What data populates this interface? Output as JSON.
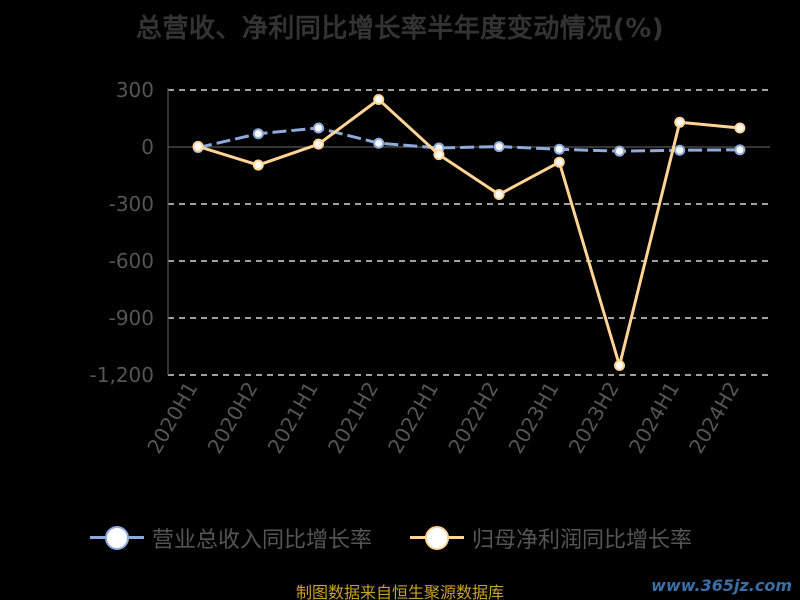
{
  "chart_data": {
    "type": "line",
    "title": "总营收、净利同比增长率半年度变动情况(%)",
    "categories": [
      "2020H1",
      "2020H2",
      "2021H1",
      "2021H2",
      "2022H1",
      "2022H2",
      "2023H1",
      "2023H2",
      "2024H1",
      "2024H2"
    ],
    "series": [
      {
        "name": "营业总收入同比增长率",
        "values": [
          -3,
          70,
          100,
          20,
          -5,
          2,
          -12,
          -22,
          -17,
          -15
        ],
        "color": "#8eaadb"
      },
      {
        "name": "归母净利润同比增长率",
        "values": [
          3,
          -95,
          15,
          250,
          -40,
          -250,
          -80,
          -1150,
          130,
          100
        ],
        "color": "#ffd494"
      }
    ],
    "y_ticks": [
      "300",
      "0",
      "-300",
      "-600",
      "-900",
      "-1,200"
    ],
    "ylim": [
      -1200,
      300
    ],
    "grid": true,
    "legend_position": "bottom",
    "ylabel": "",
    "xlabel": ""
  },
  "footer": {
    "source": "制图数据来自恒生聚源数据库",
    "watermark": "www.365jz.com"
  },
  "colors": {
    "background": "#000000",
    "grid": "#ffffff",
    "axis": "#555555",
    "title": "#333333",
    "source": "#c9a227"
  }
}
